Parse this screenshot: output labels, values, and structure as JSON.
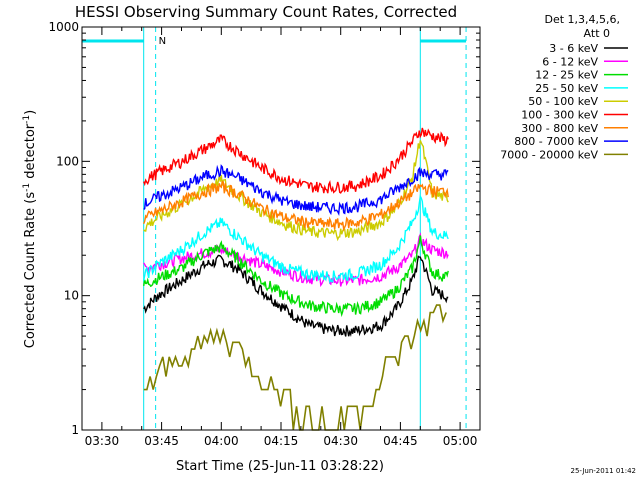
{
  "chart_data": {
    "type": "line",
    "title": "HESSI Observing Summary Count Rates, Corrected",
    "xlabel": "Start Time (25-Jun-11 03:28:22)",
    "ylabel_main": "Corrected Count Rate (s",
    "ylabel_sup1": "-1",
    "ylabel_mid": " detector",
    "ylabel_sup2": "-1",
    "ylabel_end": ")",
    "yscale": "log",
    "ylim": [
      1,
      1000
    ],
    "xlim_minutes_after_0330": [
      -5,
      95
    ],
    "x_ticks": [
      "03:30",
      "03:45",
      "04:00",
      "04:15",
      "04:30",
      "04:45",
      "05:00"
    ],
    "y_ticks": [
      "1",
      "10",
      "100",
      "1000"
    ],
    "legend_header": [
      "Det 1,3,4,5,6,",
      "Att 0"
    ],
    "legend_position": "right",
    "timestamp": "25-Jun-2011 01:42",
    "annotation_flag": "N",
    "series": [
      {
        "name": "3 - 6 keV",
        "color": "#000000",
        "x": [
          10.5,
          14,
          20,
          26,
          30,
          34,
          40,
          46,
          52,
          58,
          64,
          70,
          74,
          78,
          80,
          83,
          86,
          87
        ],
        "y": [
          8,
          10,
          13,
          17,
          18.5,
          16,
          11,
          8,
          6,
          5.5,
          5.5,
          6,
          8,
          13,
          20,
          11,
          10,
          10
        ]
      },
      {
        "name": "6 - 12 keV",
        "color": "#ff00ff",
        "x": [
          10.5,
          14,
          20,
          26,
          30,
          34,
          40,
          46,
          52,
          58,
          64,
          70,
          74,
          78,
          80,
          83,
          86,
          87
        ],
        "y": [
          16,
          17,
          19,
          21,
          22,
          20,
          17,
          15,
          13.5,
          13,
          13,
          14,
          16,
          20,
          26,
          22,
          21,
          21
        ]
      },
      {
        "name": "12 - 25 keV",
        "color": "#00dd00",
        "x": [
          10.5,
          14,
          20,
          26,
          30,
          34,
          40,
          46,
          52,
          58,
          64,
          70,
          74,
          78,
          80,
          83,
          86,
          87
        ],
        "y": [
          12,
          13.5,
          16,
          21,
          23,
          19,
          13,
          10,
          8.5,
          8,
          8,
          9,
          11,
          16,
          26,
          15,
          14,
          14
        ]
      },
      {
        "name": "25 - 50 keV",
        "color": "#00ffff",
        "x": [
          10.5,
          14,
          20,
          26,
          30,
          34,
          40,
          46,
          52,
          58,
          64,
          70,
          74,
          78,
          80,
          83,
          86,
          87
        ],
        "y": [
          14,
          17,
          22,
          30,
          35,
          28,
          20,
          16,
          14.5,
          14,
          14.5,
          17,
          22,
          35,
          52,
          30,
          28,
          28
        ]
      },
      {
        "name": "50 - 100 keV",
        "color": "#cccc00",
        "x": [
          10.5,
          14,
          20,
          26,
          30,
          34,
          40,
          46,
          52,
          58,
          64,
          70,
          74,
          78,
          80,
          83,
          86,
          87
        ],
        "y": [
          32,
          38,
          48,
          63,
          72,
          57,
          42,
          34,
          30,
          29,
          30,
          35,
          45,
          75,
          150,
          58,
          54,
          54
        ]
      },
      {
        "name": "100 - 300 keV",
        "color": "#ff0000",
        "x": [
          10.5,
          14,
          20,
          26,
          30,
          34,
          40,
          46,
          52,
          58,
          64,
          70,
          74,
          78,
          80,
          83,
          86,
          87
        ],
        "y": [
          72,
          82,
          100,
          125,
          145,
          120,
          90,
          73,
          65,
          64,
          66,
          78,
          100,
          140,
          170,
          155,
          145,
          145
        ]
      },
      {
        "name": "300 - 800 keV",
        "color": "#ff7f00",
        "x": [
          10.5,
          14,
          20,
          26,
          30,
          34,
          40,
          46,
          52,
          58,
          64,
          70,
          74,
          78,
          80,
          83,
          86,
          87
        ],
        "y": [
          37,
          42,
          50,
          60,
          65,
          58,
          45,
          38,
          35,
          34,
          35,
          40,
          48,
          58,
          65,
          60,
          60,
          60
        ]
      },
      {
        "name": "800 - 7000 keV",
        "color": "#0000ff",
        "x": [
          10.5,
          14,
          20,
          26,
          30,
          34,
          40,
          46,
          52,
          58,
          64,
          70,
          74,
          78,
          80,
          83,
          86,
          87
        ],
        "y": [
          48,
          54,
          64,
          78,
          85,
          76,
          60,
          50,
          46,
          45,
          46,
          52,
          62,
          75,
          82,
          80,
          80,
          80
        ]
      },
      {
        "name": "7000 - 20000 keV",
        "color": "#808000",
        "x": [
          10.5,
          13,
          16,
          20,
          24,
          28,
          30,
          33,
          36,
          40,
          44,
          48,
          52,
          56,
          60,
          64,
          68,
          72,
          75,
          78,
          80,
          83,
          86,
          87
        ],
        "y": [
          2,
          2.3,
          3,
          3.5,
          4,
          5,
          5.3,
          4.5,
          3.5,
          2.5,
          2,
          1.5,
          1.2,
          1.1,
          1.2,
          1.5,
          2,
          3,
          4,
          5,
          6,
          7,
          8,
          8
        ]
      }
    ],
    "vertical_markers": [
      {
        "x": 10.5,
        "style": "solid"
      },
      {
        "x": 13.5,
        "style": "dashed"
      },
      {
        "x": 80,
        "style": "solid"
      },
      {
        "x": 91.5,
        "style": "dashed"
      }
    ],
    "top_bars": [
      {
        "x": [
          -5,
          10.5
        ]
      },
      {
        "x": [
          80,
          91.5
        ]
      }
    ]
  }
}
